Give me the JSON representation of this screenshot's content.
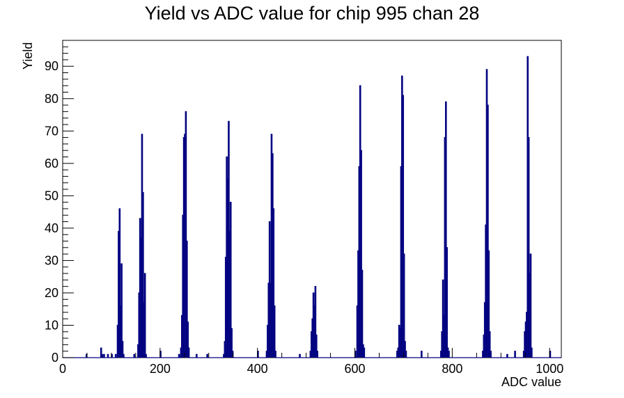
{
  "chart_data": {
    "type": "histogram",
    "title": "Yield vs ADC value for chip 995 chan 28",
    "xlabel": "ADC value",
    "ylabel": "Yield",
    "xlim": [
      0,
      1024
    ],
    "ylim": [
      0,
      98
    ],
    "x_ticks": [
      0,
      200,
      400,
      600,
      800,
      1000
    ],
    "y_ticks": [
      0,
      10,
      20,
      30,
      40,
      50,
      60,
      70,
      80,
      90
    ],
    "bin_width": 2,
    "line_color": "#000080",
    "grid": false,
    "legend": "none",
    "points": [
      {
        "x": 48,
        "y": 1
      },
      {
        "x": 78,
        "y": 3
      },
      {
        "x": 80,
        "y": 1
      },
      {
        "x": 84,
        "y": 1
      },
      {
        "x": 92,
        "y": 1
      },
      {
        "x": 100,
        "y": 1
      },
      {
        "x": 108,
        "y": 1
      },
      {
        "x": 112,
        "y": 10
      },
      {
        "x": 114,
        "y": 39
      },
      {
        "x": 116,
        "y": 46
      },
      {
        "x": 118,
        "y": 16
      },
      {
        "x": 120,
        "y": 29
      },
      {
        "x": 122,
        "y": 5
      },
      {
        "x": 124,
        "y": 1
      },
      {
        "x": 146,
        "y": 1
      },
      {
        "x": 154,
        "y": 4
      },
      {
        "x": 156,
        "y": 20
      },
      {
        "x": 158,
        "y": 43
      },
      {
        "x": 160,
        "y": 37
      },
      {
        "x": 162,
        "y": 69
      },
      {
        "x": 164,
        "y": 51
      },
      {
        "x": 166,
        "y": 17
      },
      {
        "x": 168,
        "y": 26
      },
      {
        "x": 170,
        "y": 1
      },
      {
        "x": 200,
        "y": 2
      },
      {
        "x": 238,
        "y": 1
      },
      {
        "x": 242,
        "y": 3
      },
      {
        "x": 244,
        "y": 13
      },
      {
        "x": 246,
        "y": 44
      },
      {
        "x": 248,
        "y": 68
      },
      {
        "x": 250,
        "y": 69
      },
      {
        "x": 252,
        "y": 76
      },
      {
        "x": 254,
        "y": 36
      },
      {
        "x": 256,
        "y": 11
      },
      {
        "x": 258,
        "y": 3
      },
      {
        "x": 274,
        "y": 1
      },
      {
        "x": 296,
        "y": 1
      },
      {
        "x": 330,
        "y": 1
      },
      {
        "x": 332,
        "y": 5
      },
      {
        "x": 334,
        "y": 31
      },
      {
        "x": 336,
        "y": 62
      },
      {
        "x": 338,
        "y": 55
      },
      {
        "x": 340,
        "y": 73
      },
      {
        "x": 342,
        "y": 39
      },
      {
        "x": 344,
        "y": 48
      },
      {
        "x": 346,
        "y": 9
      },
      {
        "x": 348,
        "y": 2
      },
      {
        "x": 400,
        "y": 2
      },
      {
        "x": 418,
        "y": 2
      },
      {
        "x": 420,
        "y": 10
      },
      {
        "x": 422,
        "y": 23
      },
      {
        "x": 424,
        "y": 42
      },
      {
        "x": 426,
        "y": 23
      },
      {
        "x": 428,
        "y": 69
      },
      {
        "x": 430,
        "y": 63
      },
      {
        "x": 432,
        "y": 46
      },
      {
        "x": 434,
        "y": 16
      },
      {
        "x": 436,
        "y": 2
      },
      {
        "x": 486,
        "y": 1
      },
      {
        "x": 508,
        "y": 2
      },
      {
        "x": 510,
        "y": 8
      },
      {
        "x": 512,
        "y": 12
      },
      {
        "x": 514,
        "y": 20
      },
      {
        "x": 516,
        "y": 16
      },
      {
        "x": 518,
        "y": 22
      },
      {
        "x": 520,
        "y": 7
      },
      {
        "x": 522,
        "y": 2
      },
      {
        "x": 600,
        "y": 2
      },
      {
        "x": 604,
        "y": 16
      },
      {
        "x": 606,
        "y": 33
      },
      {
        "x": 608,
        "y": 59
      },
      {
        "x": 610,
        "y": 84
      },
      {
        "x": 612,
        "y": 64
      },
      {
        "x": 614,
        "y": 27
      },
      {
        "x": 616,
        "y": 4
      },
      {
        "x": 618,
        "y": 3
      },
      {
        "x": 686,
        "y": 2
      },
      {
        "x": 688,
        "y": 3
      },
      {
        "x": 690,
        "y": 10
      },
      {
        "x": 692,
        "y": 9
      },
      {
        "x": 694,
        "y": 59
      },
      {
        "x": 696,
        "y": 87
      },
      {
        "x": 698,
        "y": 81
      },
      {
        "x": 700,
        "y": 32
      },
      {
        "x": 702,
        "y": 5
      },
      {
        "x": 704,
        "y": 2
      },
      {
        "x": 736,
        "y": 2
      },
      {
        "x": 776,
        "y": 2
      },
      {
        "x": 778,
        "y": 8
      },
      {
        "x": 780,
        "y": 24
      },
      {
        "x": 782,
        "y": 13
      },
      {
        "x": 784,
        "y": 68
      },
      {
        "x": 786,
        "y": 79
      },
      {
        "x": 788,
        "y": 34
      },
      {
        "x": 790,
        "y": 3
      },
      {
        "x": 792,
        "y": 2
      },
      {
        "x": 862,
        "y": 2
      },
      {
        "x": 864,
        "y": 7
      },
      {
        "x": 866,
        "y": 17
      },
      {
        "x": 868,
        "y": 41
      },
      {
        "x": 870,
        "y": 89
      },
      {
        "x": 872,
        "y": 78
      },
      {
        "x": 874,
        "y": 33
      },
      {
        "x": 876,
        "y": 8
      },
      {
        "x": 878,
        "y": 2
      },
      {
        "x": 912,
        "y": 1
      },
      {
        "x": 928,
        "y": 2
      },
      {
        "x": 946,
        "y": 2
      },
      {
        "x": 948,
        "y": 8
      },
      {
        "x": 950,
        "y": 11
      },
      {
        "x": 952,
        "y": 14
      },
      {
        "x": 954,
        "y": 93
      },
      {
        "x": 956,
        "y": 68
      },
      {
        "x": 958,
        "y": 26
      },
      {
        "x": 960,
        "y": 32
      },
      {
        "x": 962,
        "y": 3
      },
      {
        "x": 1000,
        "y": 2
      }
    ]
  }
}
